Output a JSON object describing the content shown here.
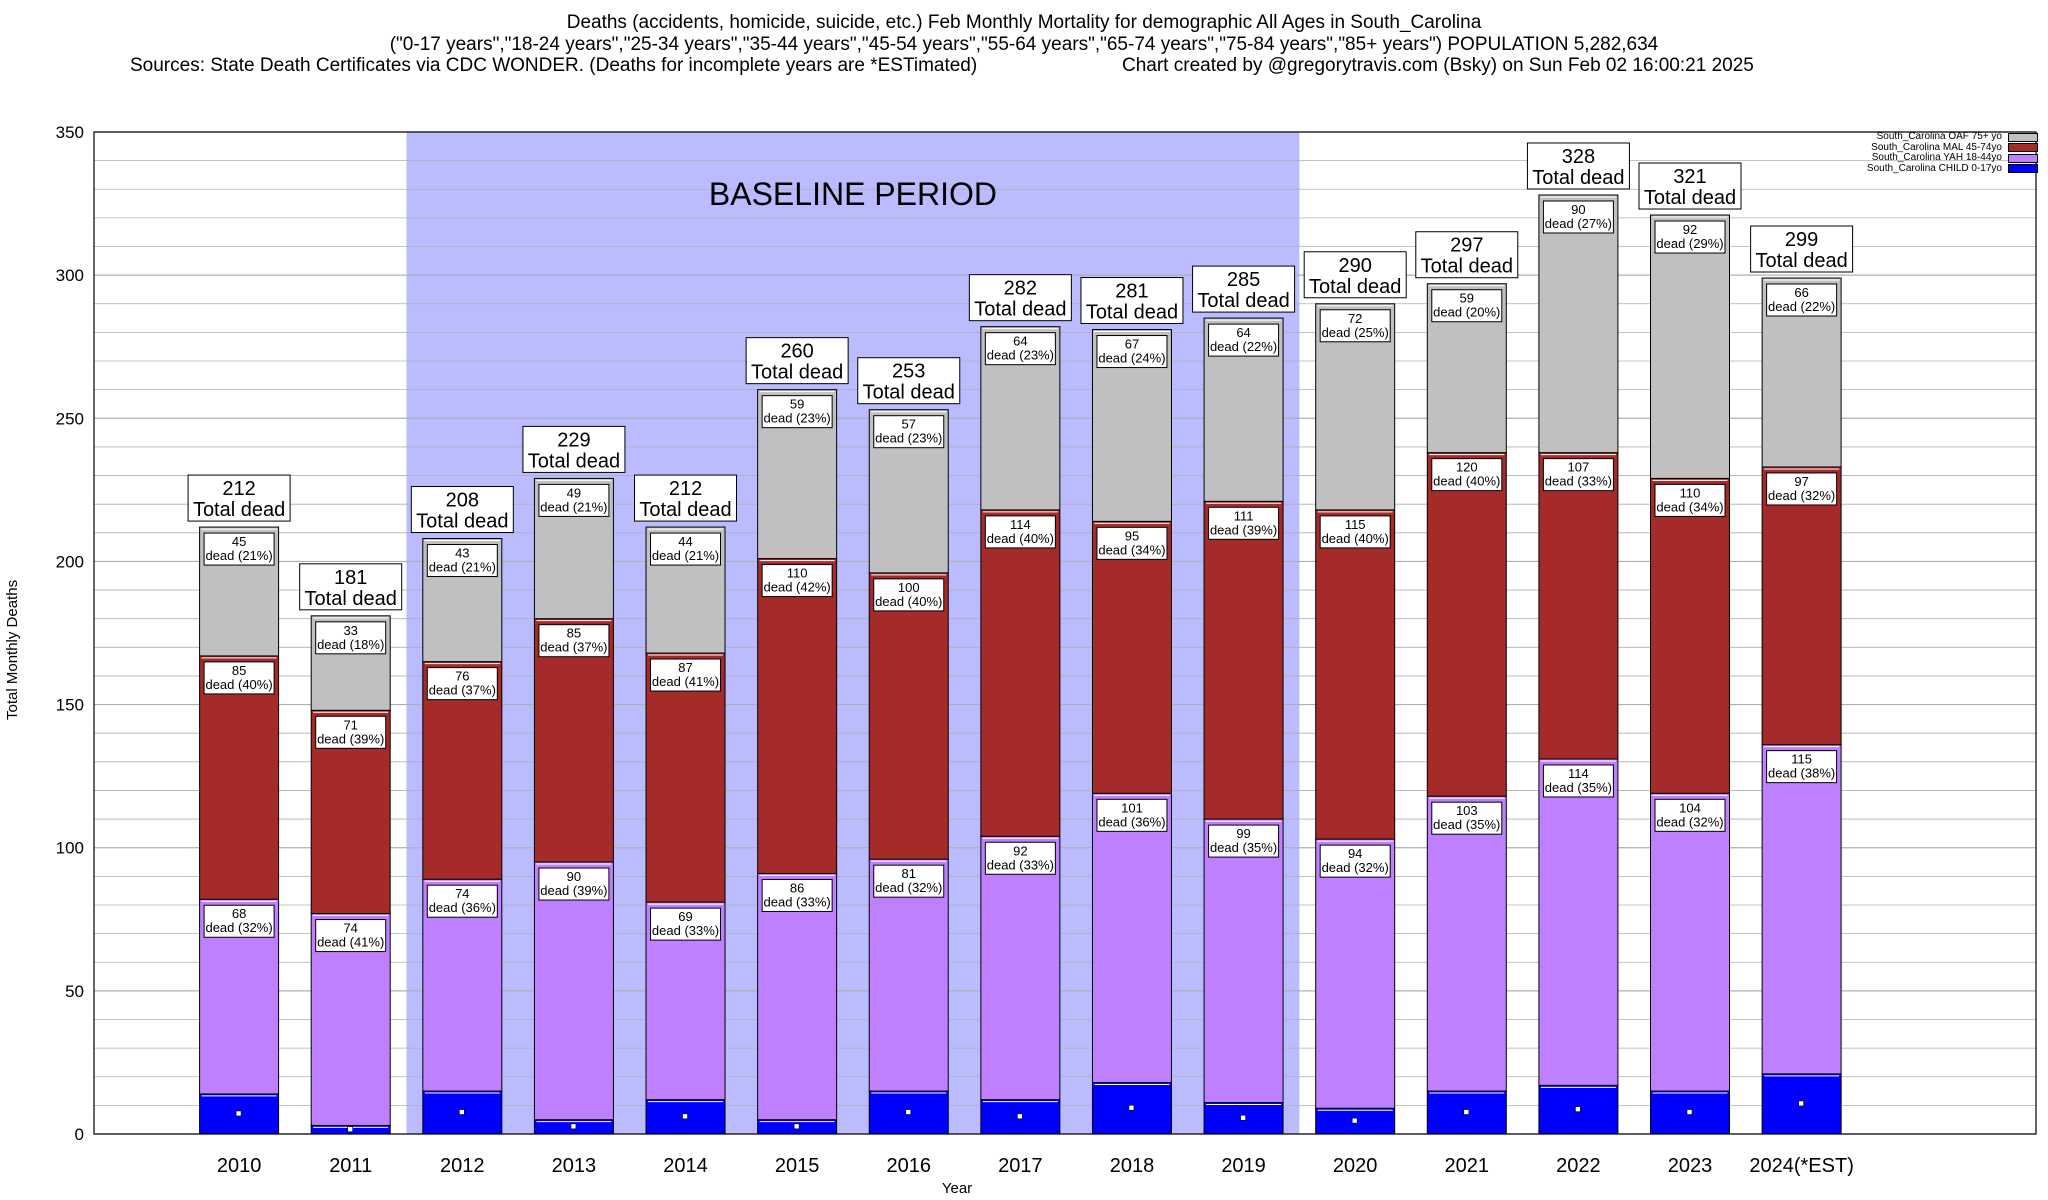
{
  "header": {
    "title": "Deaths (accidents, homicide, suicide, etc.) Feb Monthly Mortality for demographic All Ages in South_Carolina",
    "ages_line": "(\"0-17 years\",\"18-24 years\",\"25-34 years\",\"35-44 years\",\"45-54 years\",\"55-64 years\",\"65-74 years\",\"75-84 years\",\"85+ years\") POPULATION 5,282,634",
    "sources_line": "Sources: State Death Certificates via CDC WONDER. (Deaths for incomplete years are *ESTimated)",
    "credit_line": "Chart created by @gregorytravis.com (Bsky) on Sun Feb 02 16:00:21 2025"
  },
  "chart_data": {
    "type": "bar",
    "stacked": true,
    "xlabel": "Year",
    "ylabel": "Total Monthly Deaths",
    "ylim": [
      0,
      350
    ],
    "yticks": [
      0,
      50,
      100,
      150,
      200,
      250,
      300,
      350
    ],
    "grid": true,
    "legend_position": "top-right",
    "baseline_label": "BASELINE PERIOD",
    "baseline_range": [
      "2012",
      "2019"
    ],
    "total_suffix": "Total dead",
    "segment_word": "dead",
    "categories": [
      "2010",
      "2011",
      "2012",
      "2013",
      "2014",
      "2015",
      "2016",
      "2017",
      "2018",
      "2019",
      "2020",
      "2021",
      "2022",
      "2023",
      "2024(*EST)"
    ],
    "totals": [
      212,
      181,
      208,
      229,
      212,
      260,
      253,
      282,
      281,
      285,
      290,
      297,
      328,
      321,
      299
    ],
    "series": [
      {
        "name": "South_Carolina CHILD 0-17yo",
        "color": "#0000ff",
        "values": [
          14,
          3,
          15,
          5,
          12,
          5,
          15,
          12,
          18,
          11,
          9,
          15,
          17,
          15,
          21
        ],
        "labels": [
          null,
          null,
          null,
          null,
          null,
          null,
          null,
          null,
          null,
          null,
          null,
          null,
          null,
          null,
          null
        ],
        "pct": [
          null,
          null,
          null,
          null,
          null,
          null,
          null,
          null,
          null,
          null,
          null,
          null,
          null,
          null,
          null
        ]
      },
      {
        "name": "South_Carolina YAH 18-44yo",
        "color": "#bf80ff",
        "values": [
          68,
          74,
          74,
          90,
          69,
          86,
          81,
          92,
          101,
          99,
          94,
          103,
          114,
          104,
          115
        ],
        "pct": [
          "32%",
          "41%",
          "36%",
          "39%",
          "33%",
          "33%",
          "32%",
          "33%",
          "36%",
          "35%",
          "32%",
          "35%",
          "35%",
          "32%",
          "38%"
        ]
      },
      {
        "name": "South_Carolina MAL 45-74yo",
        "color": "#a52a2a",
        "values": [
          85,
          71,
          76,
          85,
          87,
          110,
          100,
          114,
          95,
          111,
          115,
          120,
          107,
          110,
          97
        ],
        "pct": [
          "40%",
          "39%",
          "37%",
          "37%",
          "41%",
          "42%",
          "40%",
          "40%",
          "34%",
          "39%",
          "40%",
          "40%",
          "33%",
          "34%",
          "32%"
        ]
      },
      {
        "name": "South_Carolina OAF 75+ yo",
        "color": "#c0c0c0",
        "values": [
          45,
          33,
          43,
          49,
          44,
          59,
          57,
          64,
          67,
          64,
          72,
          59,
          90,
          92,
          66
        ],
        "pct": [
          "21%",
          "18%",
          "21%",
          "21%",
          "21%",
          "23%",
          "23%",
          "23%",
          "24%",
          "22%",
          "25%",
          "20%",
          "27%",
          "29%",
          "22%"
        ]
      }
    ]
  },
  "colors": {
    "baseline_fill": "#bbbbff",
    "grid": "#b0b0b0"
  }
}
